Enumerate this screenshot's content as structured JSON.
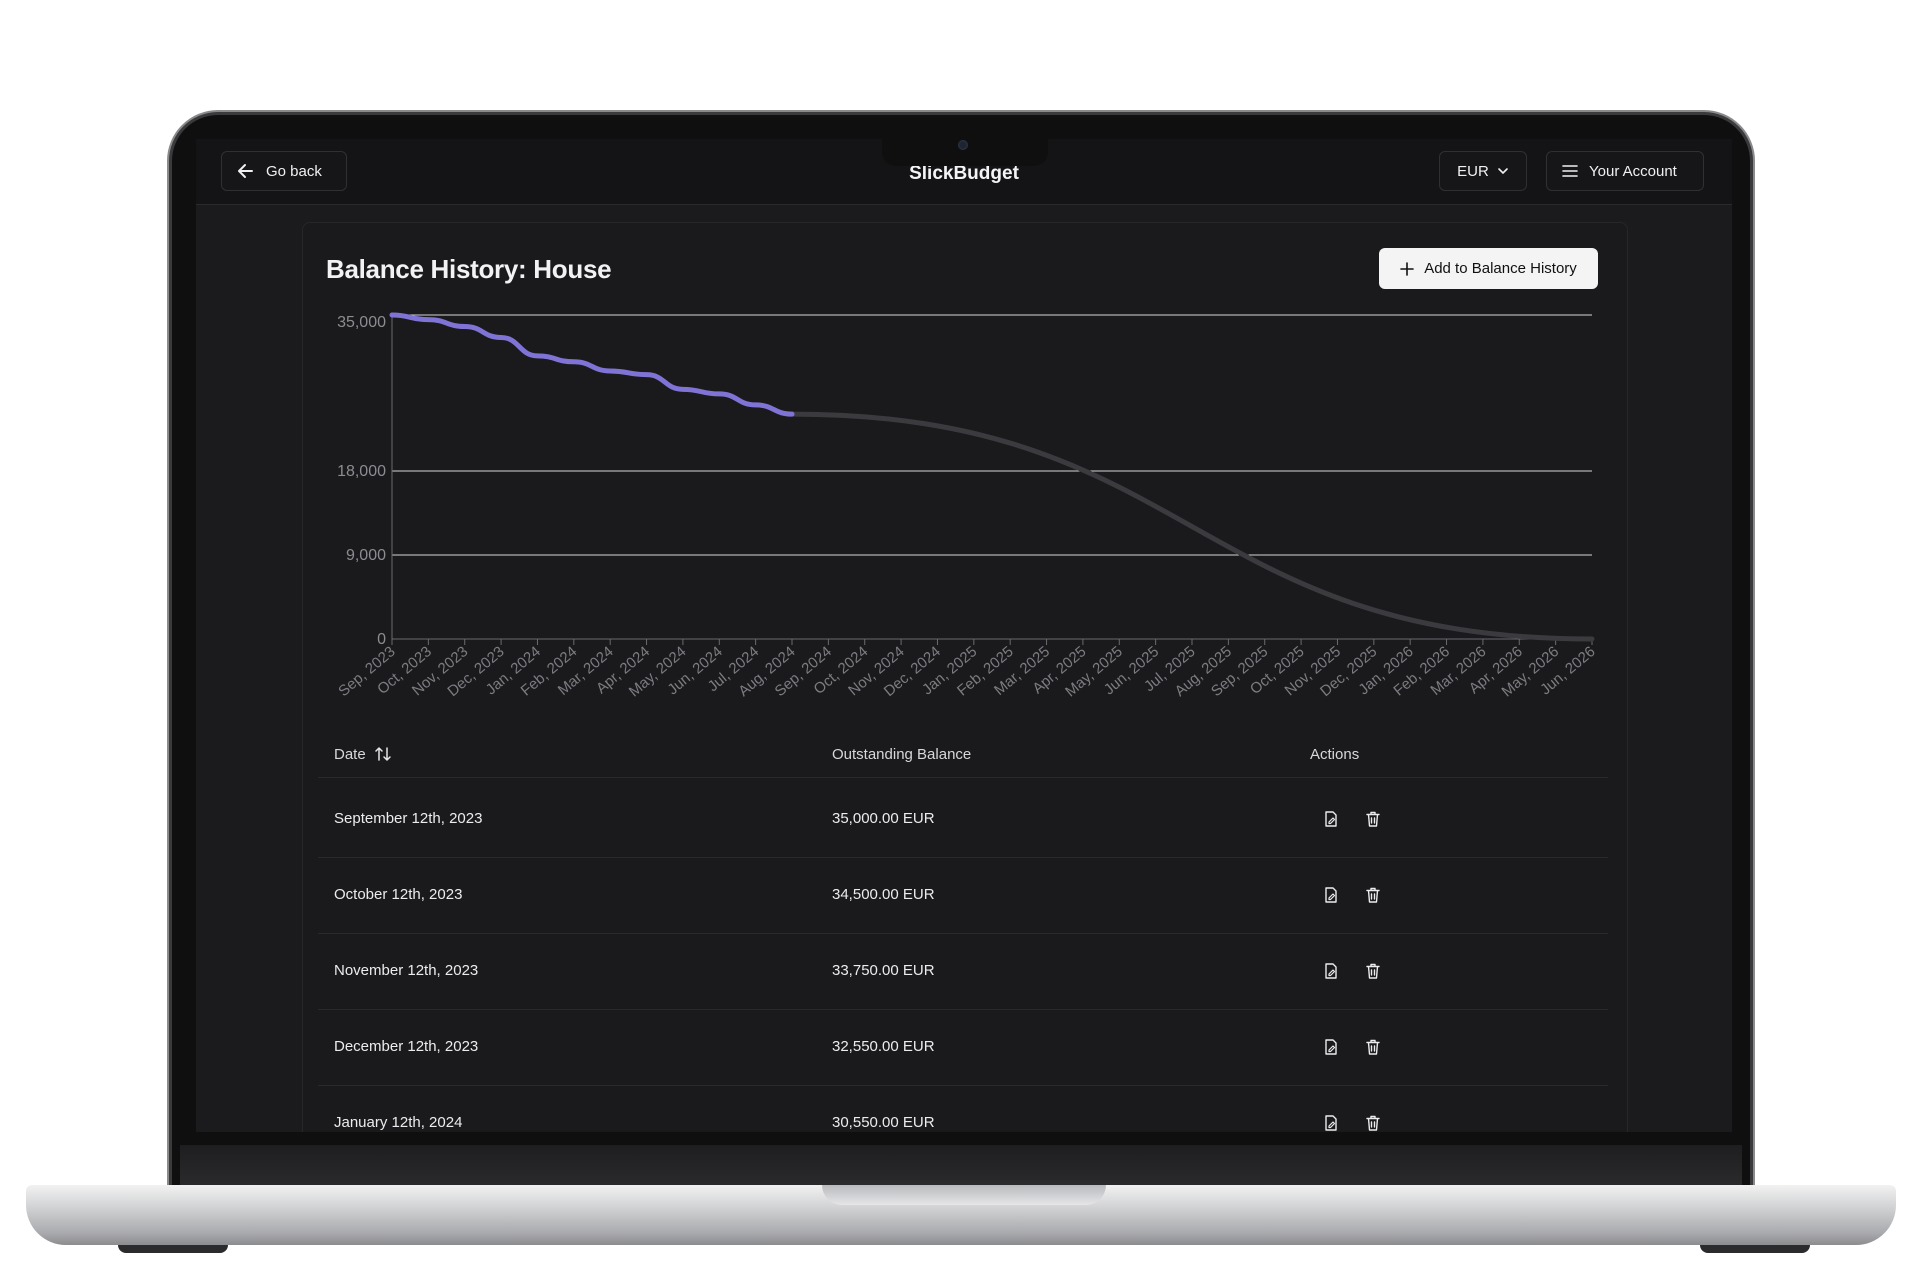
{
  "app_title": "SlickBudget",
  "topbar": {
    "back_label": "Go back",
    "currency": "EUR",
    "account_label": "Your Account"
  },
  "page_title": "Balance History: House",
  "add_button_label": "Add to Balance History",
  "chart_data": {
    "type": "line",
    "y_ticks": [
      "35,000",
      "18,000",
      "9,000",
      "0"
    ],
    "y_tick_values": [
      35000,
      18000,
      9000,
      0
    ],
    "x_labels": [
      "Sep, 2023",
      "Oct, 2023",
      "Nov, 2023",
      "Dec, 2023",
      "Jan, 2024",
      "Feb, 2024",
      "Mar, 2024",
      "Apr, 2024",
      "May, 2024",
      "Jun, 2024",
      "Jul, 2024",
      "Aug, 2024",
      "Sep, 2024",
      "Oct, 2024",
      "Nov, 2024",
      "Dec, 2024",
      "Jan, 2025",
      "Feb, 2025",
      "Mar, 2025",
      "Apr, 2025",
      "May, 2025",
      "Jun, 2025",
      "Jul, 2025",
      "Aug, 2025",
      "Sep, 2025",
      "Oct, 2025",
      "Nov, 2025",
      "Dec, 2025",
      "Jan, 2026",
      "Feb, 2026",
      "Mar, 2026",
      "Apr, 2026",
      "May, 2026",
      "Jun, 2026"
    ],
    "series": [
      {
        "color": "#7f74d6",
        "x_index": [
          0,
          1,
          2,
          3,
          4,
          5,
          6,
          7,
          8,
          9,
          10,
          11
        ],
        "values": [
          35000,
          34500,
          33750,
          32550,
          30550,
          29900,
          28900,
          28500,
          26900,
          26400,
          25200,
          24200
        ]
      },
      {
        "color": "#3b3b3f",
        "x_index": [
          11,
          33
        ],
        "values": [
          24200,
          0
        ]
      }
    ]
  },
  "table": {
    "headers": {
      "date": "Date",
      "balance": "Outstanding Balance",
      "actions": "Actions"
    },
    "rows": [
      {
        "date": "September 12th, 2023",
        "balance": "35,000.00 EUR"
      },
      {
        "date": "October 12th, 2023",
        "balance": "34,500.00 EUR"
      },
      {
        "date": "November 12th, 2023",
        "balance": "33,750.00 EUR"
      },
      {
        "date": "December 12th, 2023",
        "balance": "32,550.00 EUR"
      },
      {
        "date": "January 12th, 2024",
        "balance": "30,550.00 EUR"
      }
    ],
    "row_icons": [
      "edit-icon",
      "trash-icon"
    ]
  }
}
